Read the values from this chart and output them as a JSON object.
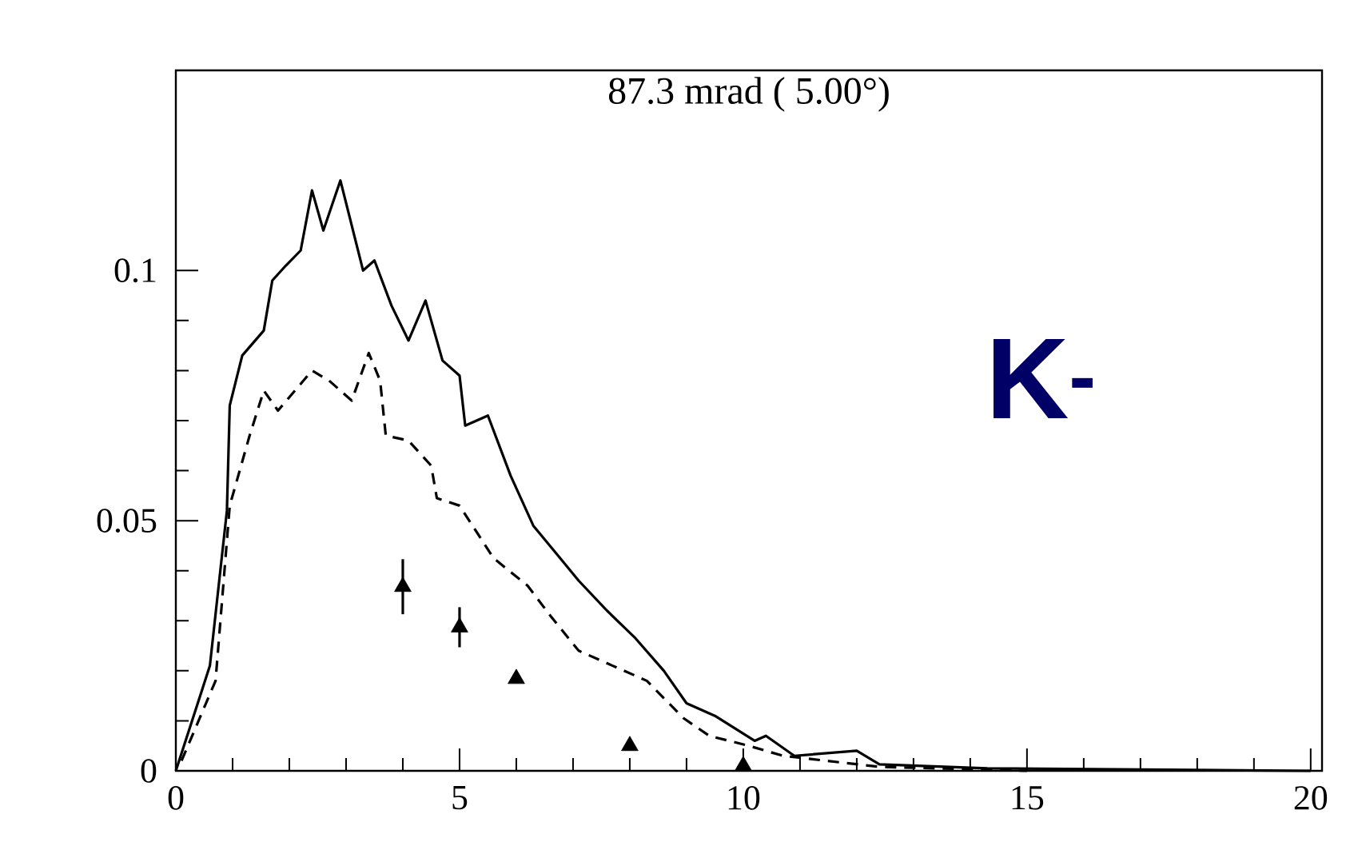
{
  "chart_data": {
    "type": "line",
    "title": "87.3 mrad ( 5.00°)",
    "annotations": [
      "K$^{-}$"
    ],
    "xlim": [
      0,
      20.2
    ],
    "ylim": [
      0,
      0.14
    ],
    "xticks": [
      0,
      5,
      10,
      15,
      20
    ],
    "yticks": [
      0,
      0.05,
      0.1
    ],
    "grid": false,
    "series": [
      {
        "line_style": "solid",
        "color": "#000000",
        "x": [
          0,
          0.6,
          0.9,
          0.95,
          1.17,
          1.55,
          1.7,
          1.94,
          2.2,
          2.4,
          2.6,
          2.9,
          3.3,
          3.5,
          3.8,
          4.1,
          4.4,
          4.7,
          5.0,
          5.1,
          5.5,
          5.9,
          6.3,
          6.7,
          7.1,
          7.6,
          8.1,
          8.6,
          9.0,
          9.5,
          10.2,
          10.4,
          10.9,
          12.0,
          12.4,
          14.3,
          20
        ],
        "values": [
          0,
          0.021,
          0.052,
          0.073,
          0.083,
          0.088,
          0.098,
          0.101,
          0.104,
          0.116,
          0.108,
          0.118,
          0.1,
          0.102,
          0.093,
          0.086,
          0.094,
          0.082,
          0.079,
          0.069,
          0.071,
          0.059,
          0.049,
          0.0435,
          0.038,
          0.032,
          0.0265,
          0.02,
          0.0135,
          0.011,
          0.006,
          0.007,
          0.003,
          0.004,
          0.0013,
          0.0005,
          0
        ]
      },
      {
        "line_style": "dashed",
        "color": "#000000",
        "x": [
          0.1,
          0.7,
          0.95,
          1.3,
          1.55,
          1.8,
          2.4,
          2.7,
          3.1,
          3.4,
          3.6,
          3.7,
          4.1,
          4.5,
          4.6,
          5.0,
          5.6,
          6.2,
          6.6,
          7.1,
          7.7,
          8.3,
          8.95,
          9.4,
          10.1,
          10.7,
          12.4,
          15
        ],
        "values": [
          0.002,
          0.018,
          0.053,
          0.067,
          0.076,
          0.072,
          0.08,
          0.078,
          0.074,
          0.0835,
          0.078,
          0.067,
          0.066,
          0.061,
          0.0545,
          0.053,
          0.0425,
          0.037,
          0.031,
          0.024,
          0.021,
          0.018,
          0.0105,
          0.007,
          0.005,
          0.003,
          0.0008,
          0
        ]
      },
      {
        "type": "scatter",
        "marker": "triangle",
        "color": "#000000",
        "x": [
          4,
          5,
          6,
          8,
          10
        ],
        "values": [
          0.0368,
          0.0287,
          0.0184,
          0.005,
          0.001
        ],
        "errors": [
          0.0055,
          0.004,
          null,
          null,
          null
        ]
      }
    ]
  }
}
